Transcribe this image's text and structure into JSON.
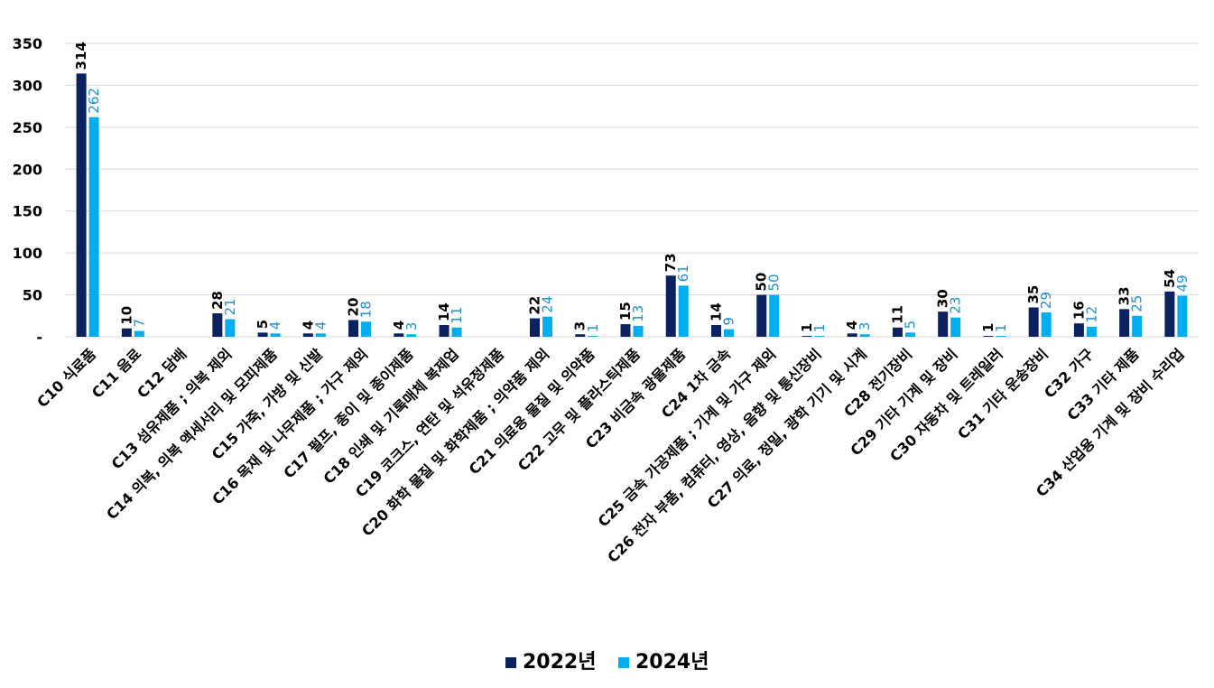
{
  "chart_data": {
    "type": "bar",
    "title": "",
    "xlabel": "",
    "ylabel": "",
    "ylim": [
      0,
      350
    ],
    "yticks": [
      0,
      50,
      100,
      150,
      200,
      250,
      300,
      350
    ],
    "ytick_labels": [
      "-",
      "50",
      "100",
      "150",
      "200",
      "250",
      "300",
      "350"
    ],
    "grid": true,
    "legend_position": "bottom",
    "categories": [
      "C10 식료품",
      "C11 음료",
      "C12 담배",
      "C13 섬유제품 ; 의복 제외",
      "C14 의복, 의복 액세서리 및 모피제품",
      "C15 가죽, 가방 및 신발",
      "C16 목재 및 나무제품 ; 가구 제외",
      "C17 펄프, 종이 및 종이제품",
      "C18 인쇄 및 기록매체 복제업",
      "C19 코크스, 연탄 및 석유정제품",
      "C20 화학 물질 및 화학제품 ; 의약품 제외",
      "C21 의료용 물질 및 의약품",
      "C22 고무 및 플라스틱제품",
      "C23 비금속 광물제품",
      "C24 1차 금속",
      "C25 금속 가공제품 ; 기계 및 가구 제외",
      "C26 전자 부품, 컴퓨터, 영상, 음향 및 통신장비",
      "C27 의료, 정밀, 광학 기기 및 시계",
      "C28 전기장비",
      "C29 기타 기계 및 장비",
      "C30 자동차 및 트레일러",
      "C31 기타 운송장비",
      "C32 가구",
      "C33 기타 제품",
      "C34 산업용 기계 및 장비 수리업"
    ],
    "series": [
      {
        "name": "2022년",
        "color": "#0b2160",
        "values": [
          314,
          10,
          null,
          28,
          5,
          4,
          20,
          4,
          14,
          null,
          22,
          3,
          15,
          73,
          14,
          50,
          1,
          4,
          11,
          30,
          1,
          35,
          16,
          33,
          54
        ],
        "labels": [
          "314",
          "10",
          "",
          "28",
          "5",
          "4",
          "20",
          "4",
          "14",
          "",
          "22",
          "3",
          "15",
          "73",
          "14",
          "50",
          "1",
          "4",
          "11",
          "30",
          "1",
          "35",
          "16",
          "33",
          "54"
        ]
      },
      {
        "name": "2024년",
        "color": "#00aeef",
        "values": [
          262,
          7,
          null,
          21,
          4,
          4,
          18,
          3,
          11,
          null,
          24,
          1,
          13,
          61,
          9,
          50,
          1,
          3,
          5,
          23,
          1,
          29,
          12,
          25,
          49
        ],
        "labels": [
          "262",
          "7",
          "",
          "21",
          "4",
          "4",
          "18",
          "3",
          "11",
          "",
          "24",
          "1",
          "13",
          "61",
          "9",
          "50",
          "1",
          "3",
          "5",
          "23",
          "1",
          "29",
          "12",
          "25",
          "49"
        ]
      }
    ]
  }
}
